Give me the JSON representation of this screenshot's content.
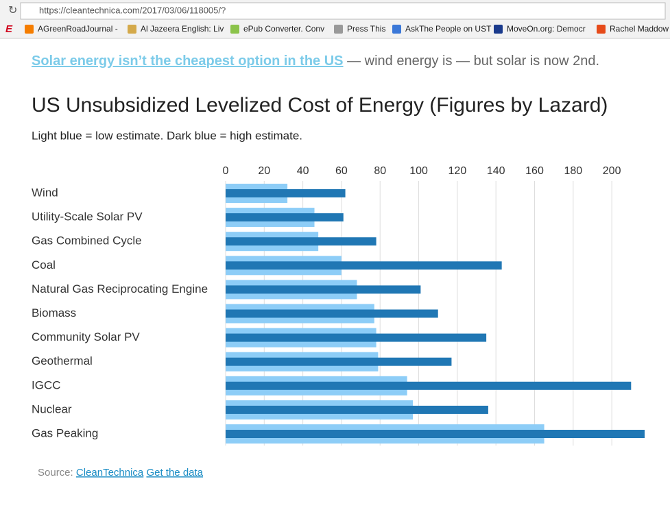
{
  "browser": {
    "url": "https://cleantechnica.com/2017/03/06/118005/?",
    "bookmarks": [
      "AGreenRoadJournal -",
      "Al Jazeera English: Liv",
      "ePub Converter. Conv",
      "Press This",
      "AskThe People on UST",
      "MoveOn.org: Democr",
      "Rachel Maddow"
    ]
  },
  "intro": {
    "link": "Solar energy isn’t the cheapest option in the US",
    "text": " — wind energy is — but solar is now 2nd."
  },
  "chart_data": {
    "type": "bar",
    "orientation": "horizontal",
    "title": "US Unsubsidized Levelized Cost of Energy (Figures by Lazard)",
    "subtitle": "Light blue = low estimate. Dark blue = high estimate.",
    "categories": [
      "Wind",
      "Utility-Scale Solar PV",
      "Gas Combined Cycle",
      "Coal",
      "Natural Gas Reciprocating Engine",
      "Biomass",
      "Community Solar PV",
      "Geothermal",
      "IGCC",
      "Nuclear",
      "Gas Peaking"
    ],
    "series": [
      {
        "color": "#8dcdf7",
        "values": [
          32,
          46,
          48,
          60,
          68,
          77,
          78,
          79,
          94,
          97,
          165
        ]
      },
      {
        "color": "#2077b4",
        "values": [
          62,
          61,
          78,
          143,
          101,
          110,
          135,
          117,
          210,
          136,
          217
        ]
      }
    ],
    "xlim": [
      0,
      217
    ],
    "xticks": [
      0,
      20,
      40,
      60,
      80,
      100,
      120,
      140,
      160,
      180,
      200
    ],
    "grid": true
  },
  "source": {
    "label": "Source:",
    "links": [
      "CleanTechnica",
      "Get the data"
    ]
  }
}
